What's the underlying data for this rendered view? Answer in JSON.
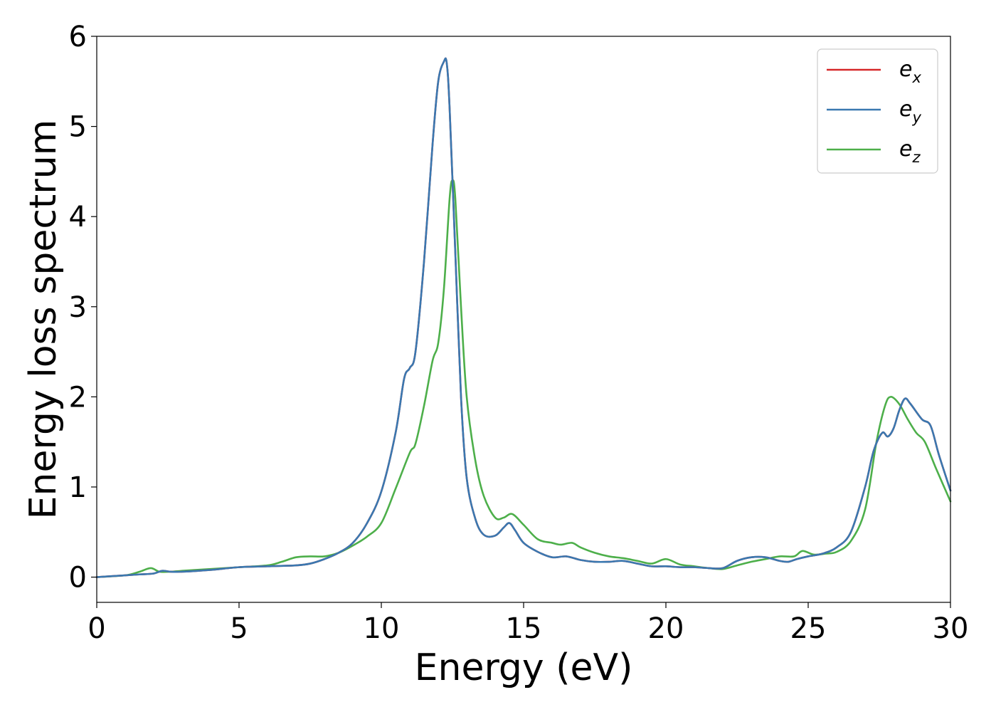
{
  "chart_data": {
    "type": "line",
    "xlabel": "Energy (eV)",
    "ylabel": "Energy loss spectrum",
    "xlim": [
      0,
      30
    ],
    "ylim": [
      -0.28,
      6
    ],
    "xticks": [
      0,
      5,
      10,
      15,
      20,
      25,
      30
    ],
    "yticks": [
      0,
      1,
      2,
      3,
      4,
      5,
      6
    ],
    "grid": false,
    "legend_position": "top-right",
    "series": [
      {
        "name": "e_x",
        "label_base": "e",
        "label_sub": "x",
        "color": "#d62728",
        "x": [
          0,
          1,
          1.5,
          2,
          2.3,
          2.6,
          3,
          4,
          5,
          6,
          7,
          7.5,
          8,
          8.5,
          9,
          9.5,
          10,
          10.5,
          10.8,
          11,
          11.2,
          11.5,
          11.8,
          12,
          12.2,
          12.3,
          12.4,
          12.6,
          12.8,
          13,
          13.3,
          13.6,
          14,
          14.3,
          14.5,
          14.7,
          15,
          15.5,
          16,
          16.5,
          17,
          17.5,
          18,
          18.5,
          19,
          19.5,
          20,
          20.5,
          21,
          21.5,
          22,
          22.5,
          23,
          23.5,
          24,
          24.3,
          24.6,
          25,
          25.5,
          26,
          26.5,
          27,
          27.3,
          27.6,
          27.8,
          28,
          28.2,
          28.4,
          28.6,
          29,
          29.3,
          29.6,
          30
        ],
        "values": [
          0,
          0.02,
          0.03,
          0.04,
          0.07,
          0.06,
          0.06,
          0.08,
          0.11,
          0.12,
          0.13,
          0.15,
          0.2,
          0.27,
          0.38,
          0.6,
          0.95,
          1.6,
          2.2,
          2.32,
          2.5,
          3.5,
          4.8,
          5.5,
          5.72,
          5.7,
          5.2,
          3.6,
          2.0,
          1.1,
          0.65,
          0.47,
          0.46,
          0.55,
          0.6,
          0.52,
          0.38,
          0.28,
          0.22,
          0.23,
          0.19,
          0.17,
          0.17,
          0.18,
          0.15,
          0.12,
          0.12,
          0.11,
          0.11,
          0.1,
          0.1,
          0.18,
          0.22,
          0.22,
          0.18,
          0.17,
          0.2,
          0.23,
          0.26,
          0.33,
          0.5,
          1.0,
          1.4,
          1.6,
          1.56,
          1.65,
          1.85,
          1.98,
          1.92,
          1.75,
          1.68,
          1.35,
          0.96
        ]
      },
      {
        "name": "e_y",
        "label_base": "e",
        "label_sub": "y",
        "color": "#3a78b0",
        "x": [
          0,
          1,
          1.5,
          2,
          2.3,
          2.6,
          3,
          4,
          5,
          6,
          7,
          7.5,
          8,
          8.5,
          9,
          9.5,
          10,
          10.5,
          10.8,
          11,
          11.2,
          11.5,
          11.8,
          12,
          12.2,
          12.3,
          12.4,
          12.6,
          12.8,
          13,
          13.3,
          13.6,
          14,
          14.3,
          14.5,
          14.7,
          15,
          15.5,
          16,
          16.5,
          17,
          17.5,
          18,
          18.5,
          19,
          19.5,
          20,
          20.5,
          21,
          21.5,
          22,
          22.5,
          23,
          23.5,
          24,
          24.3,
          24.6,
          25,
          25.5,
          26,
          26.5,
          27,
          27.3,
          27.6,
          27.8,
          28,
          28.2,
          28.4,
          28.6,
          29,
          29.3,
          29.6,
          30
        ],
        "values": [
          0,
          0.02,
          0.03,
          0.04,
          0.07,
          0.06,
          0.06,
          0.08,
          0.11,
          0.12,
          0.13,
          0.15,
          0.2,
          0.27,
          0.38,
          0.6,
          0.95,
          1.6,
          2.2,
          2.32,
          2.5,
          3.5,
          4.8,
          5.5,
          5.72,
          5.7,
          5.2,
          3.6,
          2.0,
          1.1,
          0.65,
          0.47,
          0.46,
          0.55,
          0.6,
          0.52,
          0.38,
          0.28,
          0.22,
          0.23,
          0.19,
          0.17,
          0.17,
          0.18,
          0.15,
          0.12,
          0.12,
          0.11,
          0.11,
          0.1,
          0.1,
          0.18,
          0.22,
          0.22,
          0.18,
          0.17,
          0.2,
          0.23,
          0.26,
          0.33,
          0.5,
          1.0,
          1.4,
          1.6,
          1.56,
          1.65,
          1.85,
          1.98,
          1.92,
          1.75,
          1.68,
          1.35,
          0.96
        ]
      },
      {
        "name": "e_z",
        "label_base": "e",
        "label_sub": "z",
        "color": "#4daf4a",
        "x": [
          0,
          1,
          1.5,
          1.9,
          2.2,
          2.6,
          3,
          4,
          5,
          6,
          6.5,
          7,
          7.5,
          8,
          8.5,
          9,
          9.5,
          10,
          10.5,
          11,
          11.2,
          11.5,
          11.8,
          12,
          12.2,
          12.4,
          12.5,
          12.6,
          12.8,
          13,
          13.3,
          13.6,
          14,
          14.3,
          14.6,
          15,
          15.5,
          16,
          16.3,
          16.7,
          17,
          17.5,
          18,
          18.5,
          19,
          19.5,
          20,
          20.5,
          21,
          21.5,
          22,
          22.5,
          23,
          23.5,
          24,
          24.5,
          24.8,
          25.2,
          25.6,
          26,
          26.5,
          27,
          27.4,
          27.7,
          27.9,
          28.2,
          28.5,
          28.8,
          29.1,
          29.5,
          30
        ],
        "values": [
          0,
          0.02,
          0.06,
          0.1,
          0.06,
          0.06,
          0.07,
          0.09,
          0.11,
          0.13,
          0.17,
          0.22,
          0.23,
          0.23,
          0.27,
          0.35,
          0.45,
          0.6,
          0.98,
          1.38,
          1.48,
          1.9,
          2.4,
          2.6,
          3.2,
          4.2,
          4.4,
          4.2,
          3.0,
          2.0,
          1.3,
          0.9,
          0.66,
          0.66,
          0.7,
          0.58,
          0.42,
          0.38,
          0.36,
          0.38,
          0.33,
          0.27,
          0.23,
          0.21,
          0.18,
          0.15,
          0.2,
          0.14,
          0.12,
          0.1,
          0.09,
          0.13,
          0.17,
          0.2,
          0.23,
          0.23,
          0.29,
          0.25,
          0.26,
          0.28,
          0.4,
          0.75,
          1.5,
          1.9,
          2.0,
          1.92,
          1.75,
          1.6,
          1.5,
          1.2,
          0.84
        ]
      }
    ]
  }
}
